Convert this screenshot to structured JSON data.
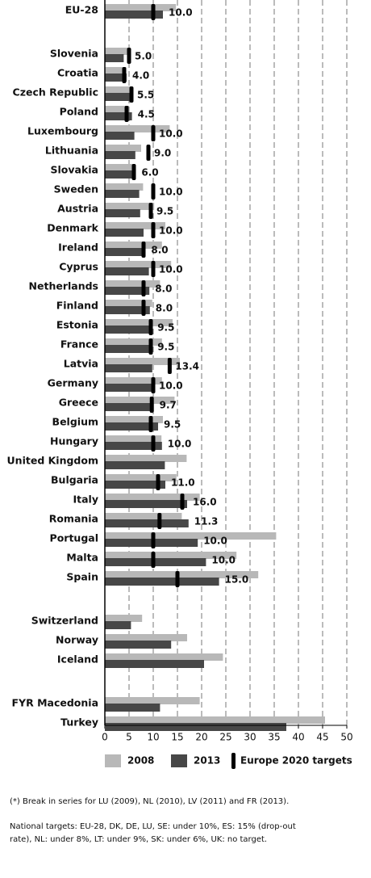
{
  "chart_data": {
    "type": "bar",
    "orientation": "horizontal",
    "categories": [
      "EU-28",
      null,
      "Slovenia",
      "Croatia",
      "Czech Republic",
      "Poland",
      "Luxembourg",
      "Lithuania",
      "Slovakia",
      "Sweden",
      "Austria",
      "Denmark",
      "Ireland",
      "Cyprus",
      "Netherlands",
      "Finland",
      "Estonia",
      "France",
      "Latvia",
      "Germany",
      "Greece",
      "Belgium",
      "Hungary",
      "United Kingdom",
      "Bulgaria",
      "Italy",
      "Romania",
      "Portugal",
      "Malta",
      "Spain",
      null,
      "Switzerland",
      "Norway",
      "Iceland",
      null,
      "FYR Macedonia",
      "Turkey"
    ],
    "series": [
      {
        "name": "2008",
        "color": "#b8b8b8",
        "values": [
          14.7,
          null,
          5.1,
          4.4,
          5.6,
          5.0,
          13.4,
          7.5,
          6.0,
          7.9,
          10.2,
          12.5,
          11.8,
          13.7,
          11.4,
          9.8,
          14.0,
          11.8,
          15.5,
          11.8,
          14.4,
          12.0,
          11.7,
          16.9,
          14.8,
          19.6,
          15.9,
          35.4,
          27.2,
          31.7,
          null,
          7.7,
          17.0,
          24.4,
          null,
          19.6,
          45.5
        ]
      },
      {
        "name": "2013",
        "color": "#474747",
        "values": [
          12.0,
          null,
          3.9,
          4.5,
          5.4,
          5.6,
          6.1,
          6.3,
          6.4,
          7.1,
          7.3,
          8.0,
          8.4,
          9.1,
          9.2,
          9.3,
          9.7,
          9.7,
          9.8,
          9.9,
          10.1,
          11.0,
          11.8,
          12.4,
          12.5,
          17.0,
          17.3,
          19.2,
          20.9,
          23.6,
          null,
          5.4,
          13.7,
          20.5,
          null,
          11.4,
          37.5
        ]
      },
      {
        "name": "Europe 2020 targets",
        "color": "#000000",
        "values": [
          10,
          null,
          5,
          4,
          5.5,
          4.5,
          10,
          9,
          6,
          10,
          9.5,
          10,
          8,
          10,
          8,
          8,
          9.5,
          9.5,
          13.4,
          10,
          9.7,
          9.5,
          10,
          null,
          11,
          16,
          11.3,
          10,
          10,
          15,
          null,
          null,
          null,
          null,
          null,
          null,
          null
        ],
        "value_labels": [
          "10.0",
          null,
          "5.0",
          "4.0",
          "5.5",
          "4.5",
          "10.0",
          "9.0",
          "6.0",
          "10.0",
          "9.5",
          "10.0",
          "8.0",
          "10.0",
          "8.0",
          "8.0",
          "9.5",
          "9.5",
          "13.4",
          "10.0",
          "9.7",
          "9.5",
          "10.0",
          null,
          "11.0",
          "16.0",
          "11.3",
          "10.0",
          "10.0",
          "15.0",
          null,
          null,
          null,
          null,
          null,
          null,
          null
        ]
      }
    ],
    "xlim": [
      0,
      50
    ],
    "xticks": [
      0,
      5,
      10,
      15,
      20,
      25,
      30,
      35,
      40,
      45,
      50
    ],
    "grid": true,
    "notes": [
      "(*)  Break in series for LU (2009), NL (2010), LV (2011) and FR (2013).",
      "National targets: EU-28, DK, DE, LU, SE: under 10%, ES: 15% (drop-out",
      "rate), NL: under 8%, LT: under 9%, SK: under 6%, UK: no target."
    ]
  }
}
